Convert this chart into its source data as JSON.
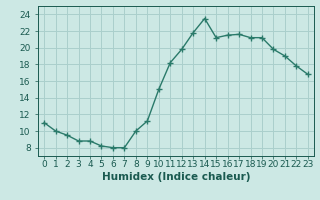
{
  "x": [
    0,
    1,
    2,
    3,
    4,
    5,
    6,
    7,
    8,
    9,
    10,
    11,
    12,
    13,
    14,
    15,
    16,
    17,
    18,
    19,
    20,
    21,
    22,
    23
  ],
  "y": [
    11,
    10,
    9.5,
    8.8,
    8.8,
    8.2,
    8.0,
    8.0,
    10.0,
    11.2,
    15.0,
    18.2,
    19.8,
    21.8,
    23.5,
    21.2,
    21.5,
    21.6,
    21.2,
    21.2,
    19.8,
    19.0,
    17.8,
    16.8
  ],
  "xlabel": "Humidex (Indice chaleur)",
  "xlim": [
    -0.5,
    23.5
  ],
  "ylim": [
    7,
    25
  ],
  "yticks": [
    8,
    10,
    12,
    14,
    16,
    18,
    20,
    22,
    24
  ],
  "xtick_labels": [
    "0",
    "1",
    "2",
    "3",
    "4",
    "5",
    "6",
    "7",
    "8",
    "9",
    "10",
    "11",
    "12",
    "13",
    "14",
    "15",
    "16",
    "17",
    "18",
    "19",
    "20",
    "21",
    "22",
    "23"
  ],
  "line_color": "#2a7a6a",
  "marker": "+",
  "bg_color": "#cce8e4",
  "grid_color": "#aacfcc",
  "font_color": "#1a5a50",
  "tick_fontsize": 6.5,
  "xlabel_fontsize": 7.5
}
